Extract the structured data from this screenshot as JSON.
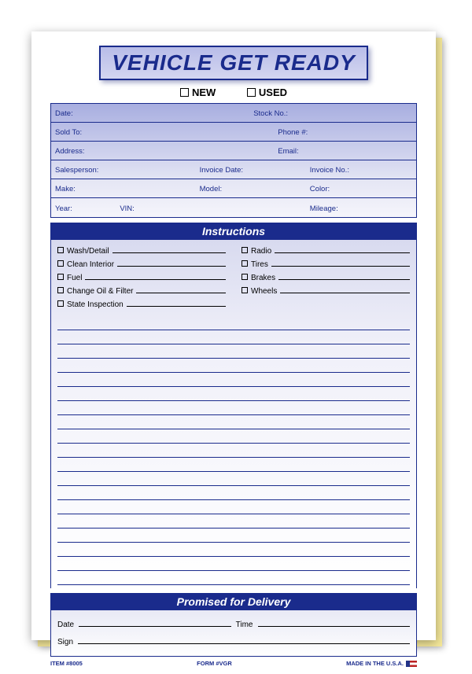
{
  "title": "VEHICLE GET READY",
  "condition": {
    "new_label": "NEW",
    "used_label": "USED"
  },
  "info": {
    "date": "Date:",
    "stock_no": "Stock No.:",
    "sold_to": "Sold To:",
    "phone": "Phone #:",
    "address": "Address:",
    "email": "Email:",
    "salesperson": "Salesperson:",
    "invoice_date": "Invoice Date:",
    "invoice_no": "Invoice No.:",
    "make": "Make:",
    "model": "Model:",
    "color": "Color:",
    "year": "Year:",
    "vin": "VIN:",
    "mileage": "Mileage:"
  },
  "sections": {
    "instructions": "Instructions",
    "delivery": "Promised for Delivery"
  },
  "checklist": {
    "left": [
      "Wash/Detail",
      "Clean Interior",
      "Fuel",
      "Change Oil & Filter",
      "State Inspection"
    ],
    "right": [
      "Radio",
      "Tires",
      "Brakes",
      "Wheels"
    ]
  },
  "delivery": {
    "date": "Date",
    "time": "Time",
    "sign": "Sign"
  },
  "footer": {
    "item": "ITEM #8005",
    "form": "FORM #VGR",
    "made": "MADE IN THE U.S.A."
  },
  "style": {
    "primary_color": "#1a2b8c",
    "gradient_top": "#a8aee0",
    "gradient_bottom": "#ffffff",
    "rule_lines_count": 19
  }
}
